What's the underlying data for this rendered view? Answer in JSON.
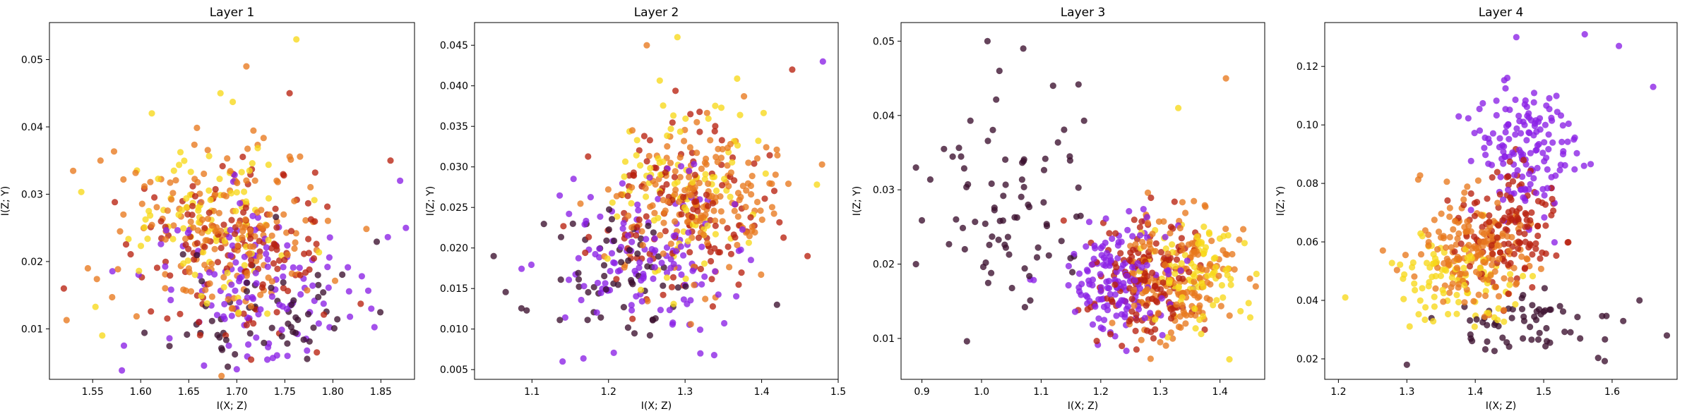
{
  "chart_data": [
    {
      "type": "scatter",
      "title": "Layer 1",
      "xlabel": "I(X; Z)",
      "ylabel": "I(Z; Y)",
      "xlim": [
        1.505,
        1.885
      ],
      "ylim": [
        0.0025,
        0.0555
      ],
      "xticks": [
        1.55,
        1.6,
        1.65,
        1.7,
        1.75,
        1.8,
        1.85
      ],
      "xtick_labels": [
        "1.55",
        "1.60",
        "1.65",
        "1.70",
        "1.75",
        "1.80",
        "1.85"
      ],
      "yticks": [
        0.01,
        0.02,
        0.03,
        0.04,
        0.05
      ],
      "ytick_labels": [
        "0.01",
        "0.02",
        "0.03",
        "0.04",
        "0.05"
      ],
      "grid": false,
      "colormap": [
        "#3b0f2e",
        "#8a20e6",
        "#b8210f",
        "#e8781e",
        "#f7d81a"
      ],
      "clusters": [
        {
          "color_index": 0,
          "n": 60,
          "cx": 1.73,
          "cy": 0.013,
          "sx": 0.05,
          "sy": 0.005,
          "seed": 11
        },
        {
          "color_index": 1,
          "n": 130,
          "cx": 1.73,
          "cy": 0.016,
          "sx": 0.06,
          "sy": 0.0065,
          "seed": 12
        },
        {
          "color_index": 2,
          "n": 130,
          "cx": 1.7,
          "cy": 0.022,
          "sx": 0.055,
          "sy": 0.0065,
          "seed": 13
        },
        {
          "color_index": 3,
          "n": 170,
          "cx": 1.69,
          "cy": 0.025,
          "sx": 0.055,
          "sy": 0.0068,
          "seed": 14
        },
        {
          "color_index": 4,
          "n": 90,
          "cx": 1.68,
          "cy": 0.027,
          "sx": 0.045,
          "sy": 0.0065,
          "seed": 15
        }
      ],
      "points": [
        {
          "x": 1.52,
          "y": 0.016,
          "c": 2
        },
        {
          "x": 1.762,
          "y": 0.053,
          "c": 4
        },
        {
          "x": 1.71,
          "y": 0.049,
          "c": 3
        },
        {
          "x": 1.683,
          "y": 0.045,
          "c": 4
        },
        {
          "x": 1.755,
          "y": 0.045,
          "c": 2
        },
        {
          "x": 1.87,
          "y": 0.032,
          "c": 1
        },
        {
          "x": 1.86,
          "y": 0.035,
          "c": 2
        },
        {
          "x": 1.84,
          "y": 0.013,
          "c": 1
        },
        {
          "x": 1.7,
          "y": 0.004,
          "c": 1
        },
        {
          "x": 1.56,
          "y": 0.009,
          "c": 4
        },
        {
          "x": 1.545,
          "y": 0.019,
          "c": 3
        }
      ]
    },
    {
      "type": "scatter",
      "title": "Layer 2",
      "xlabel": "I(X; Z)",
      "ylabel": "I(Z; Y)",
      "xlim": [
        1.025,
        1.5
      ],
      "ylim": [
        0.0038,
        0.0478
      ],
      "xticks": [
        1.1,
        1.2,
        1.3,
        1.4,
        1.5
      ],
      "xtick_labels": [
        "1.1",
        "1.2",
        "1.3",
        "1.4",
        "1.5"
      ],
      "yticks": [
        0.005,
        0.01,
        0.015,
        0.02,
        0.025,
        0.03,
        0.035,
        0.04,
        0.045
      ],
      "ytick_labels": [
        "0.005",
        "0.010",
        "0.015",
        "0.020",
        "0.025",
        "0.030",
        "0.035",
        "0.040",
        "0.045"
      ],
      "grid": false,
      "colormap": [
        "#3b0f2e",
        "#8a20e6",
        "#b8210f",
        "#e8781e",
        "#f7d81a"
      ],
      "clusters": [
        {
          "color_index": 0,
          "n": 60,
          "cx": 1.22,
          "cy": 0.016,
          "sx": 0.05,
          "sy": 0.004,
          "seed": 21
        },
        {
          "color_index": 1,
          "n": 130,
          "cx": 1.25,
          "cy": 0.019,
          "sx": 0.055,
          "sy": 0.0045,
          "seed": 22
        },
        {
          "color_index": 2,
          "n": 130,
          "cx": 1.29,
          "cy": 0.024,
          "sx": 0.055,
          "sy": 0.005,
          "seed": 23
        },
        {
          "color_index": 3,
          "n": 170,
          "cx": 1.31,
          "cy": 0.026,
          "sx": 0.055,
          "sy": 0.0052,
          "seed": 24
        },
        {
          "color_index": 4,
          "n": 90,
          "cx": 1.31,
          "cy": 0.027,
          "sx": 0.05,
          "sy": 0.005,
          "seed": 25
        }
      ],
      "points": [
        {
          "x": 1.05,
          "y": 0.019,
          "c": 0
        },
        {
          "x": 1.48,
          "y": 0.043,
          "c": 1
        },
        {
          "x": 1.29,
          "y": 0.046,
          "c": 4
        },
        {
          "x": 1.25,
          "y": 0.045,
          "c": 3
        },
        {
          "x": 1.44,
          "y": 0.042,
          "c": 2
        },
        {
          "x": 1.46,
          "y": 0.019,
          "c": 2
        },
        {
          "x": 1.42,
          "y": 0.013,
          "c": 0
        },
        {
          "x": 1.14,
          "y": 0.006,
          "c": 1
        },
        {
          "x": 1.32,
          "y": 0.007,
          "c": 1
        }
      ]
    },
    {
      "type": "scatter",
      "title": "Layer 3",
      "xlabel": "I(X; Z)",
      "ylabel": "I(Z; Y)",
      "xlim": [
        0.865,
        1.475
      ],
      "ylim": [
        0.0045,
        0.0525
      ],
      "xticks": [
        0.9,
        1.0,
        1.1,
        1.2,
        1.3,
        1.4
      ],
      "xtick_labels": [
        "0.9",
        "1.0",
        "1.1",
        "1.2",
        "1.3",
        "1.4"
      ],
      "yticks": [
        0.01,
        0.02,
        0.03,
        0.04,
        0.05
      ],
      "ytick_labels": [
        "0.01",
        "0.02",
        "0.03",
        "0.04",
        "0.05"
      ],
      "grid": false,
      "colormap": [
        "#3b0f2e",
        "#8a20e6",
        "#b8210f",
        "#e8781e",
        "#f7d81a"
      ],
      "clusters": [
        {
          "color_index": 0,
          "n": 75,
          "cx": 1.05,
          "cy": 0.027,
          "sx": 0.07,
          "sy": 0.007,
          "seed": 31
        },
        {
          "color_index": 1,
          "n": 150,
          "cx": 1.22,
          "cy": 0.018,
          "sx": 0.05,
          "sy": 0.004,
          "seed": 32
        },
        {
          "color_index": 2,
          "n": 140,
          "cx": 1.27,
          "cy": 0.018,
          "sx": 0.045,
          "sy": 0.004,
          "seed": 33
        },
        {
          "color_index": 3,
          "n": 170,
          "cx": 1.33,
          "cy": 0.018,
          "sx": 0.05,
          "sy": 0.0045,
          "seed": 34
        },
        {
          "color_index": 4,
          "n": 90,
          "cx": 1.36,
          "cy": 0.019,
          "sx": 0.045,
          "sy": 0.004,
          "seed": 35
        }
      ],
      "points": [
        {
          "x": 1.01,
          "y": 0.05,
          "c": 0
        },
        {
          "x": 1.07,
          "y": 0.049,
          "c": 0
        },
        {
          "x": 1.03,
          "y": 0.046,
          "c": 0
        },
        {
          "x": 1.12,
          "y": 0.044,
          "c": 0
        },
        {
          "x": 0.89,
          "y": 0.033,
          "c": 0
        },
        {
          "x": 0.89,
          "y": 0.02,
          "c": 0
        },
        {
          "x": 1.41,
          "y": 0.045,
          "c": 3
        },
        {
          "x": 1.33,
          "y": 0.041,
          "c": 4
        },
        {
          "x": 1.46,
          "y": 0.017,
          "c": 3
        }
      ]
    },
    {
      "type": "scatter",
      "title": "Layer 4",
      "xlabel": "I(X; Z)",
      "ylabel": "I(Z; Y)",
      "xlim": [
        1.18,
        1.695
      ],
      "ylim": [
        0.013,
        0.135
      ],
      "xticks": [
        1.2,
        1.3,
        1.4,
        1.5,
        1.6
      ],
      "xtick_labels": [
        "1.2",
        "1.3",
        "1.4",
        "1.5",
        "1.6"
      ],
      "yticks": [
        0.02,
        0.04,
        0.06,
        0.08,
        0.1,
        0.12
      ],
      "ytick_labels": [
        "0.02",
        "0.04",
        "0.06",
        "0.08",
        "0.10",
        "0.12"
      ],
      "grid": false,
      "colormap": [
        "#3b0f2e",
        "#8a20e6",
        "#b8210f",
        "#e8781e",
        "#f7d81a"
      ],
      "clusters": [
        {
          "color_index": 0,
          "n": 60,
          "cx": 1.5,
          "cy": 0.032,
          "sx": 0.07,
          "sy": 0.005,
          "seed": 41
        },
        {
          "color_index": 1,
          "n": 150,
          "cx": 1.47,
          "cy": 0.092,
          "sx": 0.04,
          "sy": 0.012,
          "seed": 42
        },
        {
          "color_index": 2,
          "n": 130,
          "cx": 1.45,
          "cy": 0.066,
          "sx": 0.04,
          "sy": 0.011,
          "seed": 43
        },
        {
          "color_index": 3,
          "n": 170,
          "cx": 1.4,
          "cy": 0.057,
          "sx": 0.045,
          "sy": 0.01,
          "seed": 44
        },
        {
          "color_index": 4,
          "n": 90,
          "cx": 1.37,
          "cy": 0.048,
          "sx": 0.045,
          "sy": 0.008,
          "seed": 45
        }
      ],
      "points": [
        {
          "x": 1.21,
          "y": 0.041,
          "c": 4
        },
        {
          "x": 1.3,
          "y": 0.018,
          "c": 0
        },
        {
          "x": 1.56,
          "y": 0.131,
          "c": 1
        },
        {
          "x": 1.61,
          "y": 0.127,
          "c": 1
        },
        {
          "x": 1.66,
          "y": 0.113,
          "c": 1
        },
        {
          "x": 1.68,
          "y": 0.028,
          "c": 0
        },
        {
          "x": 1.64,
          "y": 0.04,
          "c": 0
        },
        {
          "x": 1.46,
          "y": 0.13,
          "c": 1
        }
      ]
    }
  ]
}
